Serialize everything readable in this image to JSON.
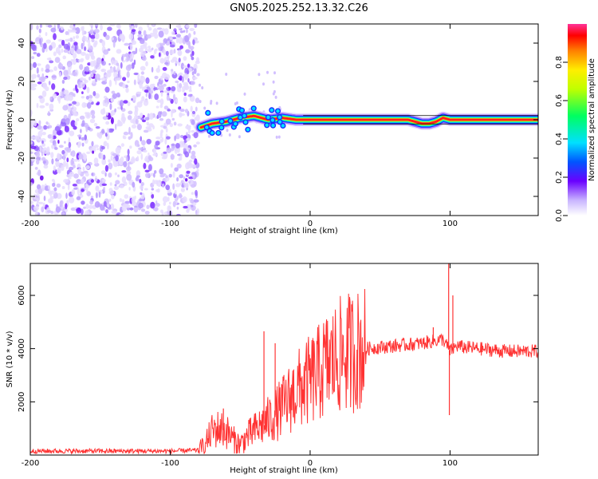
{
  "title": "GN05.2025.252.13.32.C26",
  "chart_data": [
    {
      "type": "heatmap",
      "name": "spectrogram",
      "xlabel": "Height of straight line (km)",
      "ylabel": "Frequency (Hz)",
      "xlim": [
        -200,
        163
      ],
      "ylim": [
        -50,
        50
      ],
      "xticks": [
        -200,
        -100,
        0,
        100
      ],
      "yticks": [
        -40,
        -20,
        0,
        20,
        40
      ],
      "noise_region_x": [
        -200,
        -80
      ],
      "ridge": {
        "x": [
          -78,
          -70,
          -60,
          -50,
          -40,
          -30,
          -20,
          -10,
          0,
          20,
          40,
          60,
          70,
          75,
          80,
          85,
          90,
          95,
          100,
          110,
          120,
          130,
          140,
          150,
          163
        ],
        "y": [
          -4,
          -2,
          -1,
          1,
          2,
          0,
          1,
          0,
          0,
          0,
          0,
          0,
          0,
          -1,
          -2,
          -2,
          -1,
          1,
          0,
          0,
          0,
          0,
          0,
          0,
          0
        ]
      },
      "colorbar": {
        "label": "Normalized spectral amplitude",
        "range": [
          0,
          1
        ],
        "ticks": [
          "0.0",
          "0.2",
          "0.4",
          "0.6",
          "0.8"
        ],
        "tick_values": [
          0.0,
          0.2,
          0.4,
          0.6,
          0.8
        ]
      }
    },
    {
      "type": "line",
      "name": "snr",
      "color": "#ff3333",
      "xlabel": "Height of straight line (km)",
      "ylabel": "SNR (10 * v/v)",
      "xlim": [
        -200,
        163
      ],
      "ylim": [
        0,
        7200
      ],
      "xticks": [
        -200,
        -100,
        0,
        100
      ],
      "yticks": [
        2000,
        4000,
        6000
      ],
      "x": [
        -200,
        -180,
        -160,
        -140,
        -120,
        -100,
        -80,
        -75,
        -70,
        -65,
        -60,
        -55,
        -50,
        -45,
        -40,
        -35,
        -30,
        -25,
        -20,
        -15,
        -10,
        -5,
        0,
        5,
        10,
        15,
        20,
        25,
        30,
        40,
        50,
        60,
        70,
        80,
        85,
        90,
        95,
        100,
        105,
        110,
        120,
        130,
        140,
        150,
        163
      ],
      "y": [
        150,
        150,
        150,
        150,
        150,
        150,
        180,
        400,
        900,
        1000,
        900,
        600,
        400,
        700,
        900,
        1100,
        1300,
        1500,
        1800,
        2100,
        2400,
        2600,
        2800,
        3000,
        3300,
        3500,
        3700,
        3800,
        3900,
        4000,
        4050,
        4100,
        4150,
        4200,
        4250,
        4300,
        4350,
        3900,
        4100,
        4050,
        4000,
        3950,
        3900,
        3900,
        3900
      ],
      "spikes": [
        {
          "x": -62,
          "y": 1750
        },
        {
          "x": -33,
          "y": 4650
        },
        {
          "x": -25,
          "y": 4200
        },
        {
          "x": 88,
          "y": 4800
        },
        {
          "x": 99,
          "y": 7200
        },
        {
          "x": 99.5,
          "y": 1500
        },
        {
          "x": 102,
          "y": 6000
        }
      ]
    }
  ]
}
